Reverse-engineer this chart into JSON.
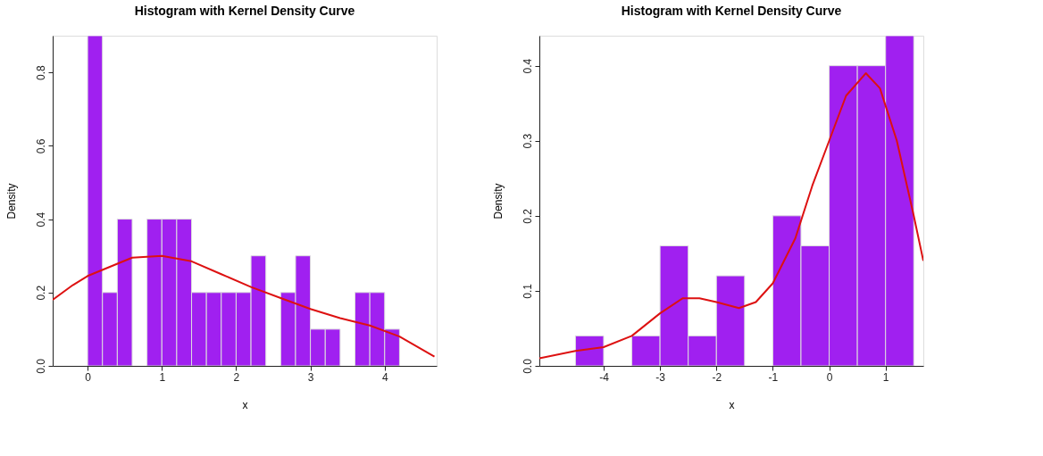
{
  "chart_data": [
    {
      "type": "histogram",
      "title": "Histogram with Kernel Density Curve",
      "xlabel": "x",
      "ylabel": "Density",
      "color": "#a020f0",
      "bins": [
        0,
        0.2,
        0.4,
        0.6,
        0.8,
        1.0,
        1.2,
        1.4,
        1.6,
        1.8,
        2.0,
        2.2,
        2.4,
        2.6,
        2.8,
        3.0,
        3.2,
        3.4,
        3.6,
        3.8,
        4.0,
        4.2
      ],
      "values": [
        0.9,
        0.2,
        0.4,
        0,
        0.4,
        0.4,
        0.4,
        0.2,
        0.2,
        0.2,
        0.2,
        0.3,
        0,
        0.2,
        0.3,
        0.1,
        0.1,
        0,
        0.2,
        0.2,
        0.1
      ],
      "series": [
        {
          "type": "line",
          "color": "#dd1111",
          "x": [
            -0.47,
            -0.2,
            0,
            0.3,
            0.6,
            1.0,
            1.4,
            1.8,
            2.2,
            2.6,
            3.0,
            3.4,
            3.8,
            4.2,
            4.67
          ],
          "values": [
            0.18,
            0.22,
            0.245,
            0.27,
            0.295,
            0.3,
            0.285,
            0.25,
            0.215,
            0.185,
            0.155,
            0.13,
            0.11,
            0.08,
            0.025
          ]
        }
      ],
      "xlim": [
        -0.47,
        4.7
      ],
      "xticks": [
        0,
        1,
        2,
        3,
        4
      ],
      "ylim": [
        0,
        0.9
      ],
      "yticks": [
        {
          "value": 0,
          "label": "0.0"
        },
        0.2,
        0.4,
        0.6,
        0.8
      ],
      "grid": false
    },
    {
      "type": "histogram",
      "title": "Histogram with Kernel Density Curve",
      "xlabel": "x",
      "ylabel": "Density",
      "color": "#a020f0",
      "bins": [
        -4.5,
        -4,
        -3.5,
        -3,
        -2.5,
        -2,
        -1.5,
        -1,
        -0.5,
        0,
        0.5,
        1,
        1.5
      ],
      "values": [
        0.04,
        0,
        0.04,
        0.16,
        0.04,
        0.12,
        0,
        0.2,
        0.16,
        0.4,
        0.4,
        0.44
      ],
      "series": [
        {
          "type": "line",
          "color": "#dd1111",
          "x": [
            -5.14,
            -4.5,
            -4,
            -3.5,
            -3,
            -2.6,
            -2.3,
            -2,
            -1.6,
            -1.3,
            -1,
            -0.6,
            -0.3,
            0,
            0.3,
            0.65,
            0.9,
            1.2,
            1.5,
            1.67
          ],
          "values": [
            0.01,
            0.02,
            0.025,
            0.04,
            0.07,
            0.09,
            0.09,
            0.085,
            0.077,
            0.085,
            0.11,
            0.17,
            0.24,
            0.3,
            0.36,
            0.39,
            0.37,
            0.3,
            0.2,
            0.14
          ]
        }
      ],
      "xlim": [
        -5.14,
        1.67
      ],
      "xticks": [
        -4,
        -3,
        -2,
        -1,
        0,
        1
      ],
      "ylim": [
        0,
        0.44
      ],
      "yticks": [
        {
          "value": 0,
          "label": "0.0"
        },
        0.1,
        0.2,
        0.3,
        0.4
      ],
      "grid": false
    }
  ]
}
